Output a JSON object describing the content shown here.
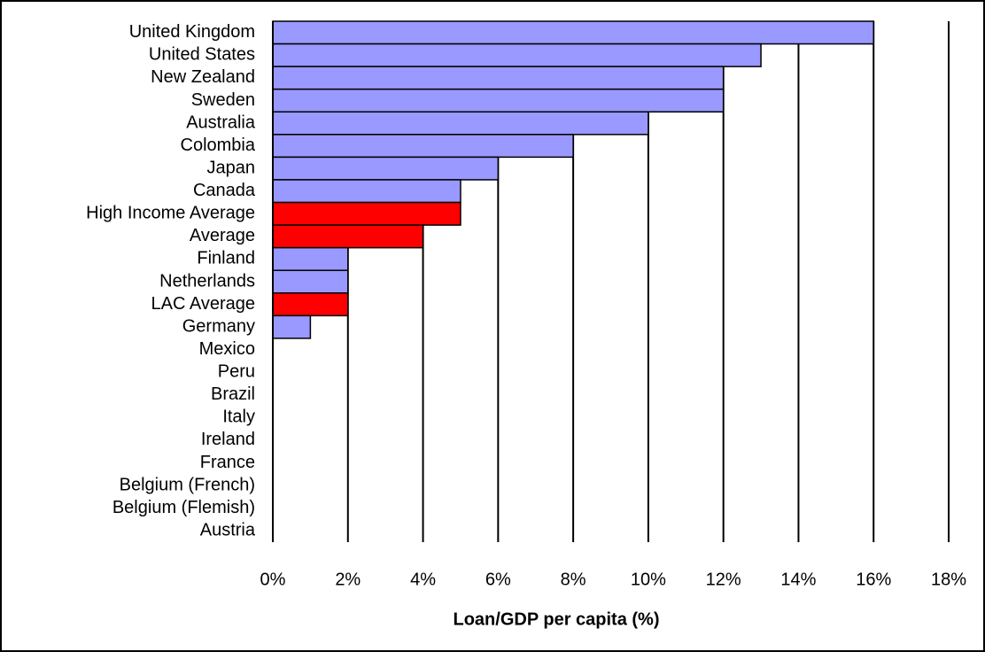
{
  "chart_data": {
    "type": "barh",
    "x_label": "Loan/GDP per capita (%)",
    "categories": [
      "United Kingdom",
      "United States",
      "New Zealand",
      "Sweden",
      "Australia",
      "Colombia",
      "Japan",
      "Canada",
      "High Income Average",
      "Average",
      "Finland",
      "Netherlands",
      "LAC Average",
      "Germany",
      "Mexico",
      "Peru",
      "Brazil",
      "Italy",
      "Ireland",
      "France",
      "Belgium (French)",
      "Belgium (Flemish)",
      "Austria"
    ],
    "values": [
      16,
      13,
      12,
      12,
      10,
      8,
      6,
      5,
      5,
      4,
      2,
      2,
      2,
      1,
      0,
      0,
      0,
      0,
      0,
      0,
      0,
      0,
      0
    ],
    "colors": [
      "#9999ff",
      "#9999ff",
      "#9999ff",
      "#9999ff",
      "#9999ff",
      "#9999ff",
      "#9999ff",
      "#9999ff",
      "#ff0000",
      "#ff0000",
      "#9999ff",
      "#9999ff",
      "#ff0000",
      "#9999ff",
      "#9999ff",
      "#9999ff",
      "#9999ff",
      "#9999ff",
      "#9999ff",
      "#9999ff",
      "#9999ff",
      "#9999ff",
      "#9999ff"
    ],
    "xlim": [
      0,
      18
    ],
    "xticks": [
      {
        "value": 0,
        "label": "0%"
      },
      {
        "value": 2,
        "label": "2%"
      },
      {
        "value": 4,
        "label": "4%"
      },
      {
        "value": 6,
        "label": "6%"
      },
      {
        "value": 8,
        "label": "8%"
      },
      {
        "value": 10,
        "label": "10%"
      },
      {
        "value": 12,
        "label": "12%"
      },
      {
        "value": 14,
        "label": "14%"
      },
      {
        "value": 16,
        "label": "16%"
      },
      {
        "value": 18,
        "label": "18%"
      }
    ],
    "grid": true
  }
}
